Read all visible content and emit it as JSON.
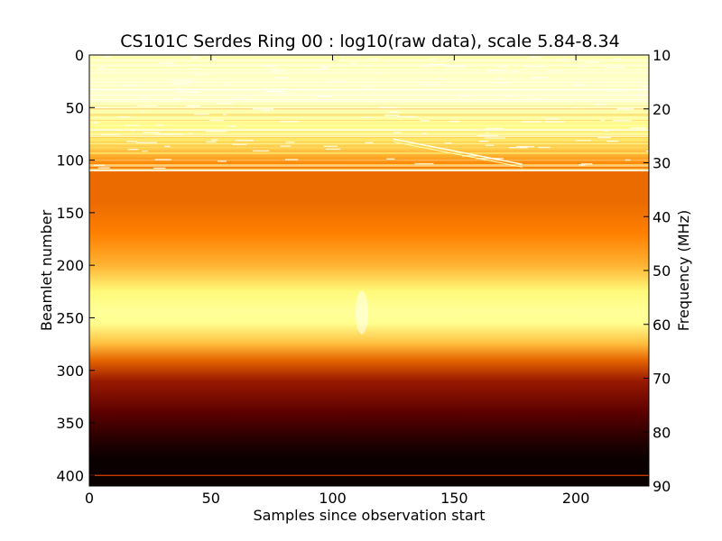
{
  "chart_data": {
    "type": "heatmap",
    "title": "CS101C Serdes Ring 00 : log10(raw data), scale 5.84-8.34",
    "xlabel": "Samples since observation start",
    "ylabel": "Beamlet number",
    "y2label": "Frequency (MHz)",
    "xlim": [
      0,
      230
    ],
    "ylim": [
      410,
      0
    ],
    "y2lim": [
      10,
      90
    ],
    "x_ticks": [
      0,
      50,
      100,
      150,
      200
    ],
    "x_tick_labels": [
      "0",
      "50",
      "100",
      "150",
      "200"
    ],
    "y_ticks": [
      0,
      50,
      100,
      150,
      200,
      250,
      300,
      350,
      400
    ],
    "y_tick_labels": [
      "0",
      "50",
      "100",
      "150",
      "200",
      "250",
      "300",
      "350",
      "400"
    ],
    "y2_ticks": [
      10,
      20,
      30,
      40,
      50,
      60,
      70,
      80,
      90
    ],
    "y2_tick_labels": [
      "10",
      "20",
      "30",
      "40",
      "50",
      "60",
      "70",
      "80",
      "90"
    ],
    "colormap": "afmhot",
    "scale_min": 5.84,
    "scale_max": 8.34,
    "row_intensity_profile": {
      "beamlet": [
        0,
        20,
        40,
        60,
        80,
        95,
        105,
        112,
        140,
        170,
        200,
        225,
        245,
        255,
        275,
        290,
        310,
        340,
        370,
        385,
        410
      ],
      "intensity": [
        0.88,
        0.92,
        0.9,
        0.82,
        0.7,
        0.6,
        0.5,
        0.46,
        0.46,
        0.5,
        0.6,
        0.74,
        0.8,
        0.78,
        0.62,
        0.45,
        0.3,
        0.18,
        0.06,
        0.02,
        0.02
      ]
    },
    "features": [
      {
        "kind": "diagonal-streak",
        "x": [
          125,
          178
        ],
        "y": [
          80,
          104
        ]
      },
      {
        "kind": "horizontal-line",
        "y": 110
      },
      {
        "kind": "horizontal-line",
        "y": 400
      },
      {
        "kind": "bright-spot",
        "x": 112,
        "y": 245
      }
    ]
  }
}
